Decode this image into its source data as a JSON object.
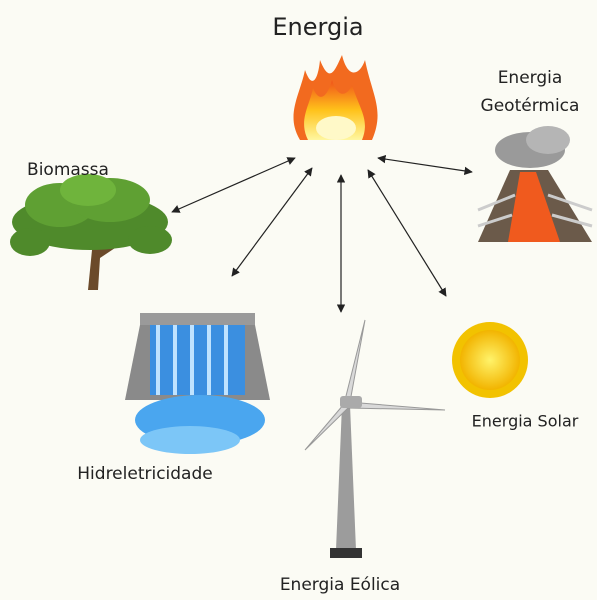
{
  "title": "Energia",
  "nodes": [
    {
      "label": "Biomassa"
    },
    {
      "label_lines": [
        "Energia",
        "Geotérmica"
      ]
    },
    {
      "label": "Hidreletricidade"
    },
    {
      "label": "Energia Eólica"
    },
    {
      "label": "Energia Solar"
    }
  ]
}
